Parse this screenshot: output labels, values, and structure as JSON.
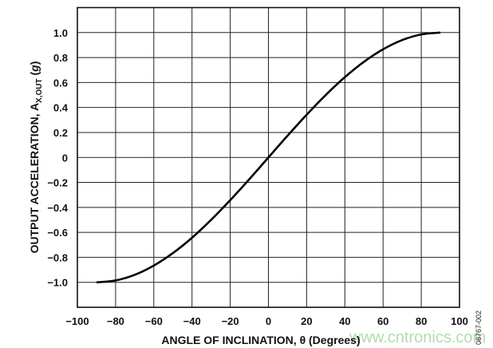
{
  "chart_data": {
    "type": "line",
    "title": "",
    "xlabel": "ANGLE OF INCLINATION, θ (Degrees)",
    "ylabel_main": "OUTPUT ACCELERATION, A",
    "ylabel_sub": "X,OUT",
    "ylabel_unit_open": " (",
    "ylabel_unit": "g",
    "ylabel_unit_close": ")",
    "xlim": [
      -100,
      100
    ],
    "ylim": [
      -1.2,
      1.2
    ],
    "grid": true,
    "x_ticks": [
      -100,
      -80,
      -60,
      -40,
      -20,
      0,
      20,
      40,
      60,
      80,
      100
    ],
    "x_tick_labels": [
      "−100",
      "−80",
      "−60",
      "−40",
      "−20",
      "0",
      "20",
      "40",
      "60",
      "80",
      "100"
    ],
    "y_ticks": [
      -1.0,
      -0.8,
      -0.6,
      -0.4,
      -0.2,
      0,
      0.2,
      0.4,
      0.6,
      0.8,
      1.0
    ],
    "y_tick_labels": [
      "−1.0",
      "−0.8",
      "−0.6",
      "−0.4",
      "−0.2",
      "0",
      "0.2",
      "0.4",
      "0.6",
      "0.8",
      "1.0"
    ],
    "series": [
      {
        "x": [
          -90,
          -80,
          -70,
          -60,
          -50,
          -40,
          -30,
          -20,
          -10,
          0,
          10,
          20,
          30,
          40,
          50,
          60,
          70,
          80,
          90
        ],
        "y": [
          -1.0,
          -0.985,
          -0.94,
          -0.866,
          -0.766,
          -0.643,
          -0.5,
          -0.342,
          -0.174,
          0,
          0.174,
          0.342,
          0.5,
          0.643,
          0.766,
          0.866,
          0.94,
          0.985,
          1.0
        ],
        "color": "#000000"
      }
    ]
  },
  "figure_code": "08767-002",
  "watermark": "www.cntronics.com"
}
